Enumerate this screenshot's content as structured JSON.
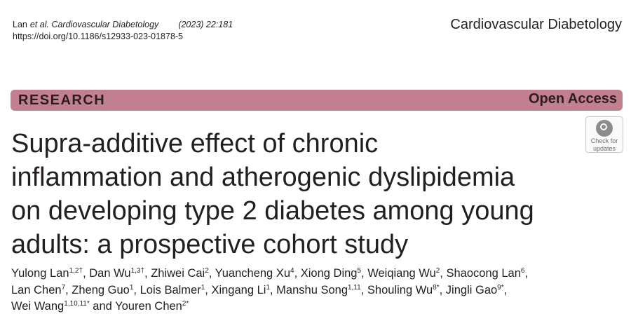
{
  "citation": {
    "authors": "Lan",
    "etal": "et al.",
    "journal": "Cardiovascular Diabetology",
    "volume": "(2023) 22:181",
    "doi": "https://doi.org/10.1186/s12933-023-01878-5"
  },
  "header": {
    "journal_name": "Cardiovascular Diabetology"
  },
  "banner": {
    "section": "RESEARCH",
    "access": "Open Access"
  },
  "check_updates": {
    "line1": "Check for",
    "line2": "updates"
  },
  "title_lines": [
    "Supra-additive effect of chronic",
    "inflammation and atherogenic dyslipidemia",
    "on developing type 2 diabetes among young",
    "adults: a prospective cohort study"
  ],
  "authors": [
    {
      "name": "Yulong Lan",
      "sup": "1,2†",
      "sep": ", "
    },
    {
      "name": "Dan Wu",
      "sup": "1,3†",
      "sep": ", "
    },
    {
      "name": "Zhiwei Cai",
      "sup": "2",
      "sep": ", "
    },
    {
      "name": "Yuancheng Xu",
      "sup": "4",
      "sep": ", "
    },
    {
      "name": "Xiong Ding",
      "sup": "5",
      "sep": ", "
    },
    {
      "name": "Weiqiang Wu",
      "sup": "2",
      "sep": ", "
    },
    {
      "name": "Shaocong Lan",
      "sup": "6",
      "sep": ","
    },
    {
      "name": "Lan Chen",
      "sup": "7",
      "sep": ", "
    },
    {
      "name": "Zheng Guo",
      "sup": "1",
      "sep": ", "
    },
    {
      "name": "Lois Balmer",
      "sup": "1",
      "sep": ", "
    },
    {
      "name": "Xingang Li",
      "sup": "1",
      "sep": ", "
    },
    {
      "name": "Manshu Song",
      "sup": "1,11",
      "sep": ", "
    },
    {
      "name": "Shouling Wu",
      "sup": "8*",
      "sep": ", "
    },
    {
      "name": "Jingli Gao",
      "sup": "9*",
      "sep": ","
    },
    {
      "name": "Wei Wang",
      "sup": "1,10,11*",
      "sep": " and "
    },
    {
      "name": "Youren Chen",
      "sup": "2*",
      "sep": ""
    }
  ]
}
